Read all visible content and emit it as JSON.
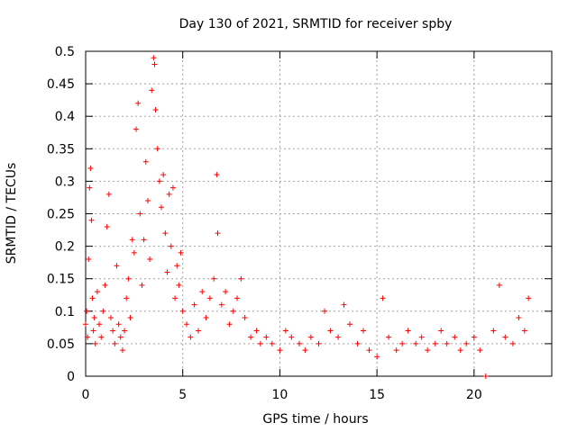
{
  "chart_data": {
    "type": "scatter",
    "title": "Day 130 of 2021, SRMTID for receiver spby",
    "xlabel": "GPS time / hours",
    "ylabel": "SRMTID / TECUs",
    "xlim": [
      0,
      24
    ],
    "ylim": [
      0,
      0.5
    ],
    "xticks": [
      0,
      5,
      10,
      15,
      20
    ],
    "xtick_labels": [
      "0",
      "5",
      "10",
      "15",
      "20"
    ],
    "yticks": [
      0,
      0.05,
      0.1,
      0.15,
      0.2,
      0.25,
      0.3,
      0.35,
      0.4,
      0.45,
      0.5
    ],
    "ytick_labels": [
      "0",
      "0.05",
      "0.1",
      "0.15",
      "0.2",
      "0.25",
      "0.3",
      "0.35",
      "0.4",
      "0.45",
      "0.5"
    ],
    "grid": true,
    "marker": "+",
    "color": "#ff0000",
    "series": [
      {
        "name": "SRMTID",
        "x": [
          0.0,
          0.05,
          0.1,
          0.15,
          0.2,
          0.25,
          0.3,
          0.35,
          0.4,
          0.45,
          0.5,
          0.6,
          0.7,
          0.8,
          0.9,
          1.0,
          1.1,
          1.2,
          1.3,
          1.4,
          1.5,
          1.6,
          1.7,
          1.8,
          1.9,
          2.0,
          2.1,
          2.2,
          2.3,
          2.4,
          2.5,
          2.6,
          2.7,
          2.8,
          2.9,
          3.0,
          3.1,
          3.2,
          3.3,
          3.4,
          3.5,
          3.55,
          3.6,
          3.7,
          3.8,
          3.9,
          4.0,
          4.1,
          4.2,
          4.3,
          4.4,
          4.5,
          4.6,
          4.7,
          4.8,
          4.9,
          5.0,
          5.2,
          5.4,
          5.6,
          5.8,
          6.0,
          6.2,
          6.4,
          6.6,
          6.75,
          6.8,
          7.0,
          7.2,
          7.4,
          7.6,
          7.8,
          8.0,
          8.2,
          8.5,
          8.8,
          9.0,
          9.3,
          9.6,
          10.0,
          10.3,
          10.6,
          11.0,
          11.3,
          11.6,
          12.0,
          12.3,
          12.6,
          13.0,
          13.3,
          13.6,
          14.0,
          14.3,
          14.6,
          15.0,
          15.3,
          15.6,
          16.0,
          16.3,
          16.6,
          17.0,
          17.3,
          17.6,
          18.0,
          18.3,
          18.6,
          19.0,
          19.3,
          19.6,
          20.0,
          20.3,
          20.6,
          21.0,
          21.3,
          21.6,
          22.0,
          22.3,
          22.6,
          22.8
        ],
        "y": [
          0.08,
          0.1,
          0.06,
          0.18,
          0.29,
          0.32,
          0.24,
          0.12,
          0.07,
          0.09,
          0.05,
          0.13,
          0.08,
          0.06,
          0.1,
          0.14,
          0.23,
          0.28,
          0.09,
          0.07,
          0.05,
          0.17,
          0.08,
          0.06,
          0.04,
          0.07,
          0.12,
          0.15,
          0.09,
          0.21,
          0.19,
          0.38,
          0.42,
          0.25,
          0.14,
          0.21,
          0.33,
          0.27,
          0.18,
          0.44,
          0.49,
          0.48,
          0.41,
          0.35,
          0.3,
          0.26,
          0.31,
          0.22,
          0.16,
          0.28,
          0.2,
          0.29,
          0.12,
          0.17,
          0.14,
          0.19,
          0.1,
          0.08,
          0.06,
          0.11,
          0.07,
          0.13,
          0.09,
          0.12,
          0.15,
          0.31,
          0.22,
          0.11,
          0.13,
          0.08,
          0.1,
          0.12,
          0.15,
          0.09,
          0.06,
          0.07,
          0.05,
          0.06,
          0.05,
          0.04,
          0.07,
          0.06,
          0.05,
          0.04,
          0.06,
          0.05,
          0.1,
          0.07,
          0.06,
          0.11,
          0.08,
          0.05,
          0.07,
          0.04,
          0.03,
          0.12,
          0.06,
          0.04,
          0.05,
          0.07,
          0.05,
          0.06,
          0.04,
          0.05,
          0.07,
          0.05,
          0.06,
          0.04,
          0.05,
          0.06,
          0.04,
          0.0,
          0.07,
          0.14,
          0.06,
          0.05,
          0.09,
          0.07,
          0.12
        ]
      }
    ]
  }
}
